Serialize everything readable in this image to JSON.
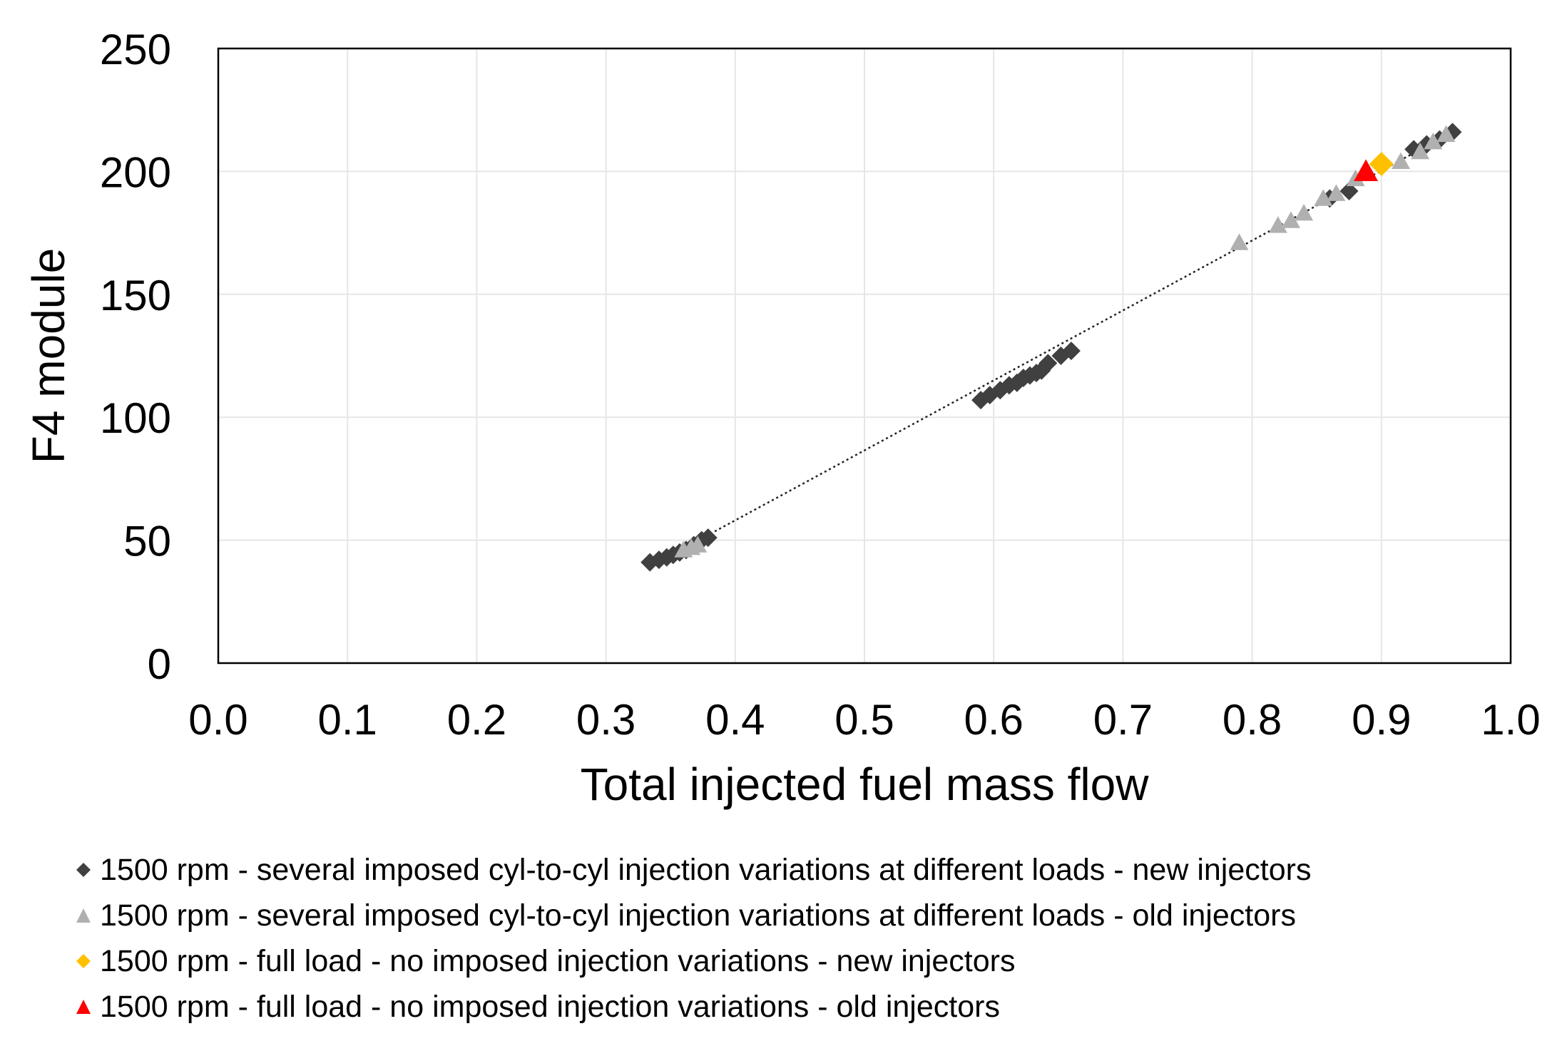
{
  "chart_data": {
    "type": "scatter",
    "title": "",
    "xlabel": "Total injected fuel mass flow",
    "ylabel": "F4 module",
    "xlim": [
      0.0,
      1.0
    ],
    "ylim": [
      0,
      250
    ],
    "xticks": [
      "0.0",
      "0.1",
      "0.2",
      "0.3",
      "0.4",
      "0.5",
      "0.6",
      "0.7",
      "0.8",
      "0.9",
      "1.0"
    ],
    "yticks": [
      "0",
      "50",
      "100",
      "150",
      "200",
      "250"
    ],
    "grid": true,
    "legend_position": "bottom",
    "trendline": {
      "style": "dotted",
      "x": [
        0.34,
        0.955
      ],
      "y": [
        41,
        216
      ]
    },
    "series": [
      {
        "name": "1500 rpm - several imposed cyl-to-cyl injection variations at different loads - new injectors",
        "marker": "diamond",
        "color": "#404040",
        "x": [
          0.334,
          0.341,
          0.347,
          0.352,
          0.357,
          0.362,
          0.368,
          0.374,
          0.379,
          0.59,
          0.597,
          0.605,
          0.612,
          0.618,
          0.623,
          0.628,
          0.633,
          0.637,
          0.642,
          0.652,
          0.66,
          0.86,
          0.875,
          0.925,
          0.935,
          0.945,
          0.955
        ],
        "y": [
          41,
          42,
          43,
          44,
          45,
          46,
          48,
          50,
          51,
          107,
          109,
          111,
          113,
          114,
          116,
          117,
          118,
          119,
          122,
          125,
          127,
          189,
          192,
          209,
          211,
          213,
          216
        ]
      },
      {
        "name": "1500 rpm - several imposed cyl-to-cyl injection variations at different loads - old injectors",
        "marker": "triangle",
        "color": "#b0b0b0",
        "x": [
          0.36,
          0.366,
          0.371,
          0.79,
          0.82,
          0.83,
          0.84,
          0.855,
          0.865,
          0.88,
          0.915,
          0.93,
          0.94,
          0.95
        ],
        "y": [
          46,
          47,
          48,
          171,
          178,
          180,
          183,
          189,
          191,
          197,
          204,
          208,
          212,
          215
        ]
      },
      {
        "name": "1500 rpm - full load - no imposed injection variations - new injectors",
        "marker": "diamond",
        "color": "#ffc000",
        "x": [
          0.9
        ],
        "y": [
          203
        ]
      },
      {
        "name": "1500 rpm - full load - no imposed injection variations - old injectors",
        "marker": "triangle",
        "color": "#ff0000",
        "x": [
          0.888
        ],
        "y": [
          200
        ]
      }
    ]
  }
}
